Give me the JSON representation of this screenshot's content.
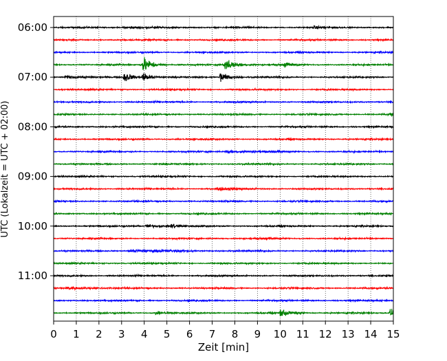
{
  "chart_data": {
    "type": "line",
    "subtype": "helicorder",
    "title": "",
    "xlabel": "Zeit  [min]",
    "ylabel": "UTC (Lokalzeit = UTC + 02:00)",
    "xlim": [
      0,
      15
    ],
    "x_ticks": [
      0,
      1,
      2,
      3,
      4,
      5,
      6,
      7,
      8,
      9,
      10,
      11,
      12,
      13,
      14,
      15
    ],
    "x_tick_labels": [
      "0",
      "1",
      "2",
      "3",
      "4",
      "5",
      "6",
      "7",
      "8",
      "9",
      "10",
      "11",
      "12",
      "13",
      "14",
      "15"
    ],
    "y_tick_labels": [
      "06:00",
      "07:00",
      "08:00",
      "09:00",
      "10:00",
      "11:00"
    ],
    "rows_per_hour": 4,
    "row_count": 24,
    "row_duration_min": 15,
    "color_cycle": [
      "#000000",
      "#ff0000",
      "#0000ff",
      "#008000"
    ],
    "vertical_grid": "dotted",
    "events": [
      {
        "row": 0,
        "t": 3.1,
        "amp": 0.25,
        "dur": 0.5
      },
      {
        "row": 0,
        "t": 11.5,
        "amp": 0.25,
        "dur": 0.4
      },
      {
        "row": 3,
        "t": 3.95,
        "amp": 1.9,
        "dur": 0.35
      },
      {
        "row": 3,
        "t": 7.5,
        "amp": 1.3,
        "dur": 0.5
      },
      {
        "row": 3,
        "t": 10.2,
        "amp": 0.5,
        "dur": 0.3
      },
      {
        "row": 4,
        "t": 3.1,
        "amp": 1.3,
        "dur": 0.3
      },
      {
        "row": 4,
        "t": 3.95,
        "amp": 1.1,
        "dur": 0.3
      },
      {
        "row": 4,
        "t": 7.35,
        "amp": 1.3,
        "dur": 0.35
      },
      {
        "row": 4,
        "t": 0.5,
        "amp": 0.35,
        "dur": 0.6
      },
      {
        "row": 7,
        "t": 14.8,
        "amp": 0.3,
        "dur": 0.3
      },
      {
        "row": 10,
        "t": 7.6,
        "amp": 0.3,
        "dur": 1.0
      },
      {
        "row": 13,
        "t": 7.2,
        "amp": 0.25,
        "dur": 0.8
      },
      {
        "row": 16,
        "t": 4.1,
        "amp": 0.4,
        "dur": 0.5
      },
      {
        "row": 16,
        "t": 5.2,
        "amp": 0.6,
        "dur": 0.25
      },
      {
        "row": 18,
        "t": 3.3,
        "amp": 0.3,
        "dur": 1.5
      },
      {
        "row": 21,
        "t": 0.6,
        "amp": 0.35,
        "dur": 0.8
      },
      {
        "row": 23,
        "t": 4.5,
        "amp": 0.35,
        "dur": 0.3
      },
      {
        "row": 23,
        "t": 10.0,
        "amp": 0.95,
        "dur": 0.4
      },
      {
        "row": 23,
        "t": 14.85,
        "amp": 0.9,
        "dur": 0.3
      }
    ]
  }
}
